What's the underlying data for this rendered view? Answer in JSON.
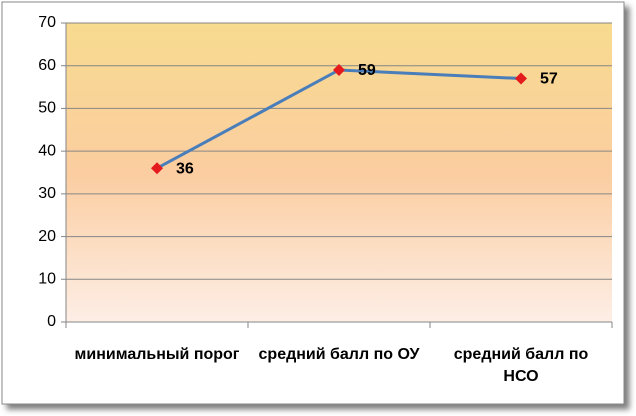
{
  "chart_data": {
    "type": "line",
    "categories": [
      "минимальный порог",
      "средний балл по ОУ",
      "средний балл по НСО"
    ],
    "values": [
      36,
      59,
      57
    ],
    "color": "#4a7ebb",
    "marker_color": "#e41a1c",
    "ylim": [
      0,
      70
    ],
    "yticks": [
      0,
      10,
      20,
      30,
      40,
      50,
      60,
      70
    ],
    "grid": true
  }
}
